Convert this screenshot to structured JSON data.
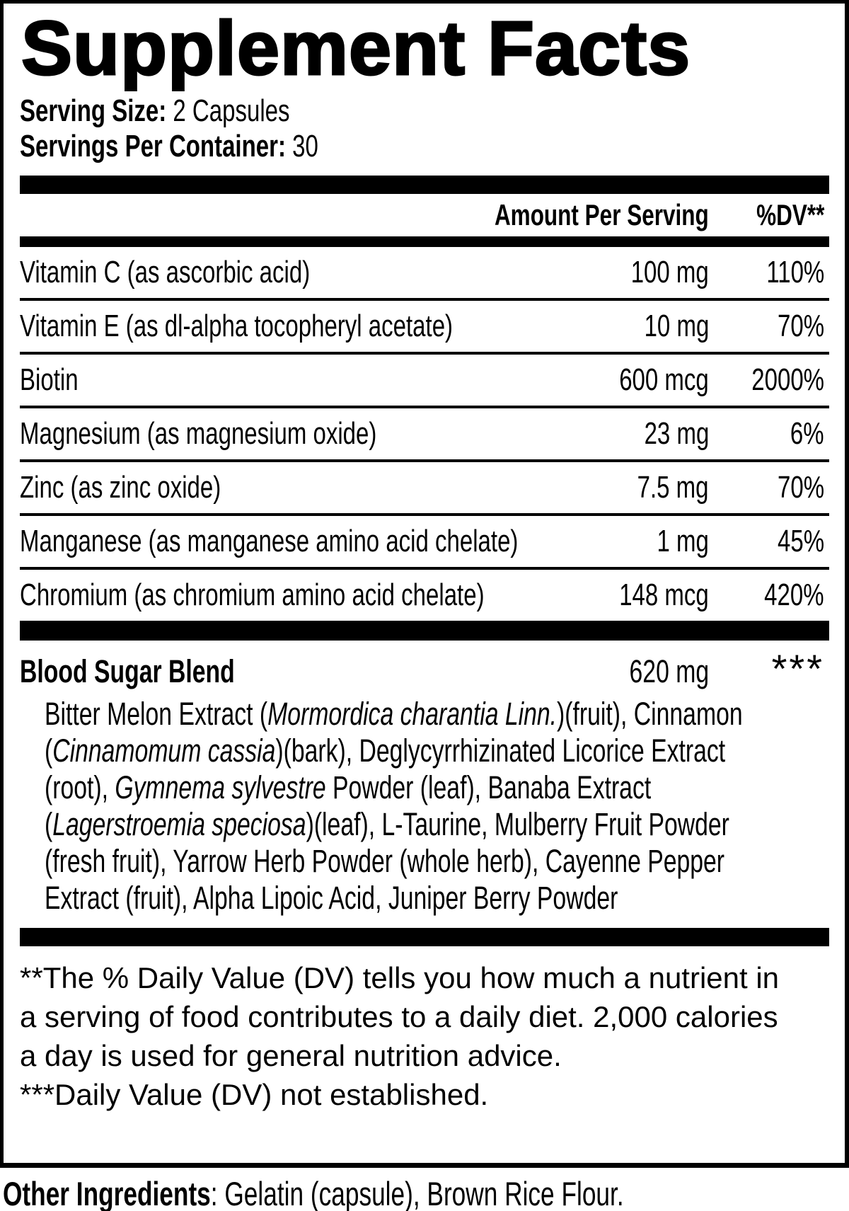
{
  "title": "Supplement Facts",
  "serving": {
    "size_label": "Serving Size:",
    "size_value": " 2 Capsules",
    "per_container_label": "Servings Per Container:",
    "per_container_value": " 30"
  },
  "table": {
    "amount_header": "Amount Per Serving",
    "dv_header": "%DV**",
    "rows": [
      {
        "name": "Vitamin C (as ascorbic acid)",
        "amount": "100 mg",
        "dv": "110%"
      },
      {
        "name": "Vitamin E (as dl-alpha tocopheryl acetate)",
        "amount": "10 mg",
        "dv": "70%"
      },
      {
        "name": "Biotin",
        "amount": "600 mcg",
        "dv": "2000%"
      },
      {
        "name": "Magnesium (as magnesium oxide)",
        "amount": "23 mg",
        "dv": "6%"
      },
      {
        "name": "Zinc (as zinc oxide)",
        "amount": "7.5 mg",
        "dv": "70%"
      },
      {
        "name": "Manganese (as manganese amino acid chelate)",
        "amount": "1 mg",
        "dv": "45%"
      },
      {
        "name": "Chromium (as chromium amino acid chelate)",
        "amount": "148 mcg",
        "dv": "420%"
      }
    ]
  },
  "blend": {
    "name": "Blood Sugar Blend",
    "amount": "620 mg",
    "dv": "***",
    "segments": [
      {
        "text": "Bitter Melon Extract (",
        "italic": false
      },
      {
        "text": "Mormordica charantia Linn.",
        "italic": true
      },
      {
        "text": ")(fruit), Cinnamon (",
        "italic": false
      },
      {
        "text": "Cinnamomum cassia",
        "italic": true
      },
      {
        "text": ")(bark), Deglycyrrhizinated Licorice Extract (root), ",
        "italic": false
      },
      {
        "text": "Gymnema sylvestre",
        "italic": true
      },
      {
        "text": " Powder (leaf), Banaba Extract (",
        "italic": false
      },
      {
        "text": "Lagerstroemia speciosa",
        "italic": true
      },
      {
        "text": ")(leaf), L-Taurine, Mulberry Fruit Powder (fresh fruit), Yarrow Herb Powder (whole herb), Cayenne Pepper Extract (fruit), Alpha Lipoic Acid, Juniper Berry Powder",
        "italic": false
      }
    ]
  },
  "footnotes": {
    "dv_note": "**The % Daily Value (DV) tells you how much a nutrient in a serving of food contributes to a daily diet. 2,000 calories a day is used for general nutrition advice.",
    "not_established_note": "***Daily Value (DV) not established."
  },
  "other_ingredients": {
    "label": "Other Ingredients",
    "value": ": Gelatin (capsule), Brown Rice Flour."
  }
}
